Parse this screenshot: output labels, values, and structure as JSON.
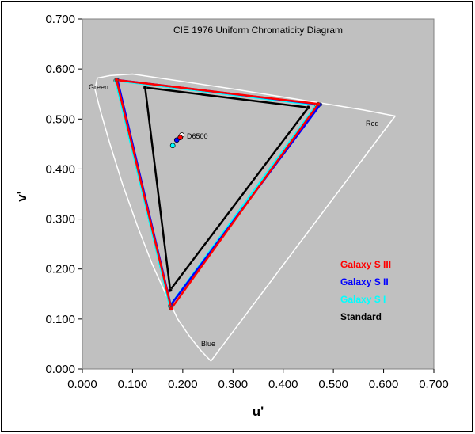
{
  "chart_data": {
    "type": "scatter",
    "title": "CIE 1976 Uniform Chromaticity Diagram",
    "xlabel": "u'",
    "ylabel": "v'",
    "xlim": [
      0,
      0.7
    ],
    "ylim": [
      0,
      0.7
    ],
    "x_ticks": [
      "0.000",
      "0.100",
      "0.200",
      "0.300",
      "0.400",
      "0.500",
      "0.600",
      "0.700"
    ],
    "y_ticks": [
      "0.000",
      "0.100",
      "0.200",
      "0.300",
      "0.400",
      "0.500",
      "0.600",
      "0.700"
    ],
    "grid": false,
    "background": "#c0c0c0",
    "legend_position": "bottom-right",
    "annotations": {
      "green": "Green",
      "red": "Red",
      "blue": "Blue",
      "white_point": "D6500"
    },
    "spectral_locus": {
      "color": "#ffffff",
      "points": [
        [
          0.256,
          0.016
        ],
        [
          0.236,
          0.037
        ],
        [
          0.214,
          0.065
        ],
        [
          0.19,
          0.1
        ],
        [
          0.166,
          0.15
        ],
        [
          0.139,
          0.21
        ],
        [
          0.11,
          0.285
        ],
        [
          0.08,
          0.37
        ],
        [
          0.055,
          0.45
        ],
        [
          0.035,
          0.52
        ],
        [
          0.025,
          0.56
        ],
        [
          0.03,
          0.582
        ],
        [
          0.055,
          0.587
        ],
        [
          0.1,
          0.59
        ],
        [
          0.2,
          0.575
        ],
        [
          0.3,
          0.56
        ],
        [
          0.4,
          0.544
        ],
        [
          0.5,
          0.528
        ],
        [
          0.56,
          0.518
        ],
        [
          0.623,
          0.506
        ],
        [
          0.256,
          0.016
        ]
      ]
    },
    "series": [
      {
        "name": "Galaxy S III",
        "color": "#ff0000",
        "points": [
          [
            0.068,
            0.578
          ],
          [
            0.47,
            0.53
          ],
          [
            0.177,
            0.121
          ]
        ],
        "white_point": [
          0.195,
          0.463
        ]
      },
      {
        "name": "Galaxy S II",
        "color": "#0000ff",
        "points": [
          [
            0.07,
            0.578
          ],
          [
            0.474,
            0.529
          ],
          [
            0.176,
            0.128
          ]
        ],
        "white_point": [
          0.188,
          0.458
        ]
      },
      {
        "name": "Galaxy S I",
        "color": "#00ffff",
        "points": [
          [
            0.066,
            0.577
          ],
          [
            0.466,
            0.528
          ],
          [
            0.174,
            0.126
          ]
        ],
        "white_point": [
          0.18,
          0.447
        ]
      },
      {
        "name": "Standard",
        "color": "#000000",
        "points": [
          [
            0.125,
            0.563
          ],
          [
            0.45,
            0.523
          ],
          [
            0.175,
            0.158
          ]
        ],
        "white_point": [
          0.198,
          0.468
        ]
      }
    ]
  }
}
